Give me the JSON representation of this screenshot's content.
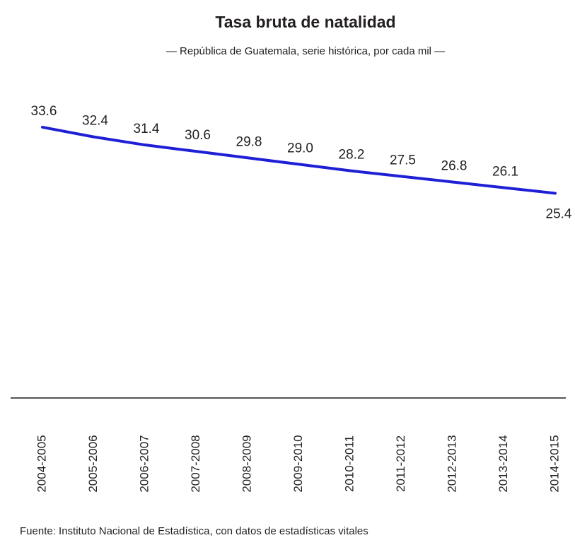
{
  "chart_data": {
    "type": "line",
    "title": "Tasa bruta de natalidad",
    "subtitle": "— República de Guatemala, serie histórica, por cada mil —",
    "source": "Fuente: Instituto Nacional de Estadística, con datos de estadísticas vitales",
    "categories": [
      "2004-2005",
      "2005-2006",
      "2006-2007",
      "2007-2008",
      "2008-2009",
      "2009-2010",
      "2010-2011",
      "2011-2012",
      "2012-2013",
      "2013-2014",
      "2014-2015"
    ],
    "series": [
      {
        "name": "Tasa bruta de natalidad",
        "color": "#1f1fd6",
        "values": [
          33.6,
          32.4,
          31.4,
          30.6,
          29.8,
          29.0,
          28.2,
          27.5,
          26.8,
          26.1,
          25.4
        ],
        "value_labels": [
          "33.6",
          "32.4",
          "31.4",
          "30.6",
          "29.8",
          "29.0",
          "28.2",
          "27.5",
          "26.8",
          "26.1",
          "25.4"
        ]
      }
    ],
    "ylim": [
      0,
      40
    ]
  }
}
